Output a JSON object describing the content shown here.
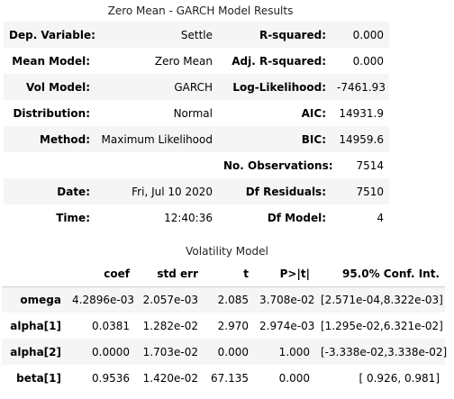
{
  "summary": {
    "title": "Zero Mean - GARCH Model Results",
    "rows": [
      [
        "Dep. Variable:",
        "Settle",
        "R-squared:",
        "0.000"
      ],
      [
        "Mean Model:",
        "Zero Mean",
        "Adj. R-squared:",
        "0.000"
      ],
      [
        "Vol Model:",
        "GARCH",
        "Log-Likelihood:",
        "-7461.93"
      ],
      [
        "Distribution:",
        "Normal",
        "AIC:",
        "14931.9"
      ],
      [
        "Method:",
        "Maximum Likelihood",
        "BIC:",
        "14959.6"
      ],
      [
        "",
        "",
        "No. Observations:",
        "7514"
      ],
      [
        "Date:",
        "Fri, Jul 10 2020",
        "Df Residuals:",
        "7510"
      ],
      [
        "Time:",
        "12:40:36",
        "Df Model:",
        "4"
      ]
    ]
  },
  "volatility": {
    "title": "Volatility Model",
    "headers": [
      "",
      "coef",
      "std err",
      "t",
      "P>|t|",
      "95.0% Conf. Int."
    ],
    "rows": [
      [
        "omega",
        "4.2896e-03",
        "2.057e-03",
        "2.085",
        "3.708e-02",
        "[2.571e-04,8.322e-03]"
      ],
      [
        "alpha[1]",
        "0.0381",
        "1.282e-02",
        "2.970",
        "2.974e-03",
        "[1.295e-02,6.321e-02]"
      ],
      [
        "alpha[2]",
        "0.0000",
        "1.703e-02",
        "0.000",
        "1.000",
        "[-3.338e-02,3.338e-02]"
      ],
      [
        "beta[1]",
        "0.9536",
        "1.420e-02",
        "67.135",
        "0.000",
        "[ 0.926, 0.981]"
      ]
    ]
  }
}
